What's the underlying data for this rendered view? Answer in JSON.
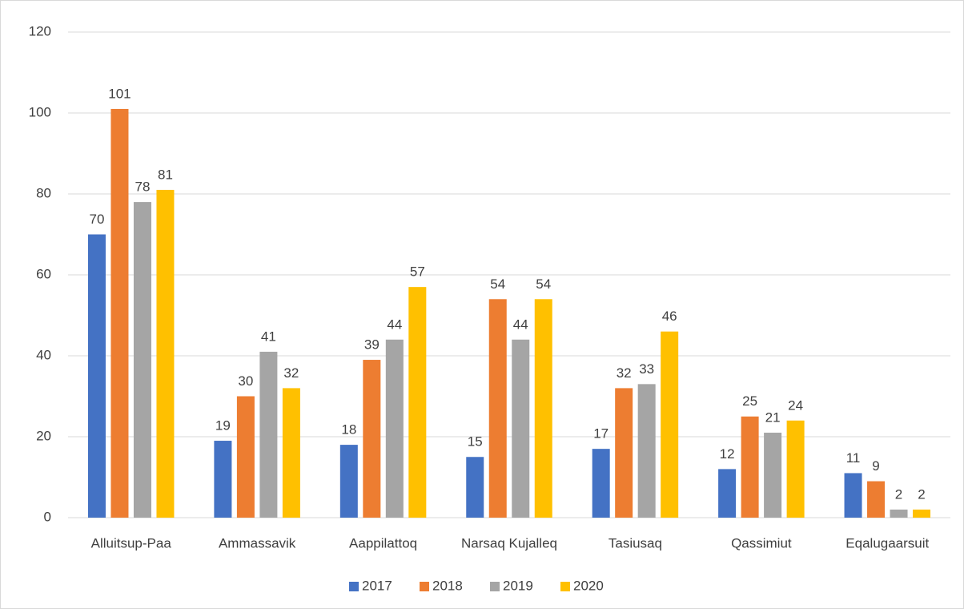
{
  "chart_data": {
    "type": "bar",
    "categories": [
      "Alluitsup-Paa",
      "Ammassavik",
      "Aappilattoq",
      "Narsaq Kujalleq",
      "Tasiusaq",
      "Qassimiut",
      "Eqalugaarsuit"
    ],
    "series": [
      {
        "name": "2017",
        "color": "#4472c4",
        "values": [
          70,
          19,
          18,
          15,
          17,
          12,
          11
        ]
      },
      {
        "name": "2018",
        "color": "#ed7d31",
        "values": [
          101,
          30,
          39,
          54,
          32,
          25,
          9
        ]
      },
      {
        "name": "2019",
        "color": "#a5a5a5",
        "values": [
          78,
          41,
          44,
          44,
          33,
          21,
          2
        ]
      },
      {
        "name": "2020",
        "color": "#ffc000",
        "values": [
          81,
          32,
          57,
          54,
          46,
          24,
          2
        ]
      }
    ],
    "ylim": [
      0,
      120
    ],
    "yticks": [
      0,
      20,
      40,
      60,
      80,
      100,
      120
    ],
    "grid": true,
    "legend": "bottom"
  }
}
